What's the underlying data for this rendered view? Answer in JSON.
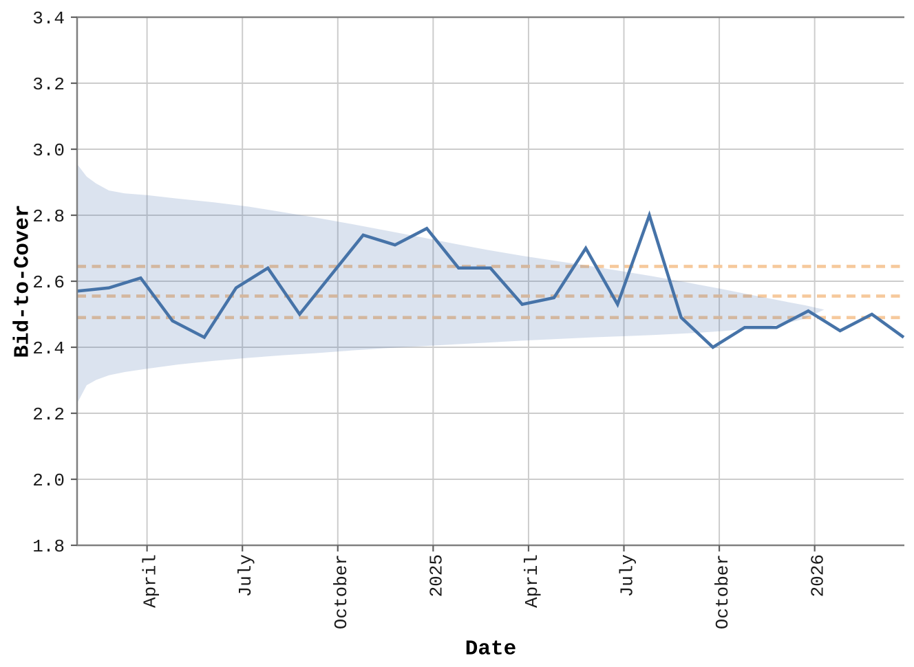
{
  "chart_data": {
    "type": "line",
    "xlabel": "Date",
    "ylabel": "Bid-to-Cover",
    "x": [
      "Feb 2024",
      "Mar 2024",
      "Apr 2024",
      "May 2024",
      "Jun 2024",
      "Jul 2024",
      "Aug 2024",
      "Sep 2024",
      "Oct 2024",
      "Nov 2024",
      "Dec 2024",
      "Jan 2025",
      "Feb 2025",
      "Mar 2025",
      "Apr 2025",
      "May 2025",
      "Jun 2025",
      "Jul 2025",
      "Aug 2025",
      "Sep 2025",
      "Oct 2025",
      "Nov 2025",
      "Dec 2025",
      "Jan 2026",
      "Feb 2026",
      "Mar 2026",
      "Apr 2026"
    ],
    "series": [
      {
        "name": "bid-to-cover",
        "color": "#4673a8",
        "values": [
          2.57,
          2.58,
          2.61,
          2.48,
          2.43,
          2.58,
          2.64,
          2.5,
          2.62,
          2.74,
          2.71,
          2.76,
          2.64,
          2.64,
          2.53,
          2.55,
          2.7,
          2.53,
          2.8,
          2.49,
          2.4,
          2.46,
          2.46,
          2.51,
          2.45,
          2.5,
          2.43
        ]
      }
    ],
    "ylim": [
      1.8,
      3.4
    ],
    "ytick_labels": [
      "1.8",
      "2.0",
      "2.2",
      "2.4",
      "2.6",
      "2.8",
      "3.0",
      "3.2",
      "3.4"
    ],
    "yticks": [
      1.8,
      2.0,
      2.2,
      2.4,
      2.6,
      2.8,
      3.0,
      3.2,
      3.4
    ],
    "xticks": [
      {
        "label": "April",
        "month_offset": 2.2
      },
      {
        "label": "July",
        "month_offset": 5.2
      },
      {
        "label": "October",
        "month_offset": 8.2
      },
      {
        "label": "2025",
        "month_offset": 11.2
      },
      {
        "label": "April",
        "month_offset": 14.2
      },
      {
        "label": "July",
        "month_offset": 17.2
      },
      {
        "label": "October",
        "month_offset": 20.2
      },
      {
        "label": "2026",
        "month_offset": 23.2
      }
    ],
    "reference_lines": {
      "style": "dashed",
      "color": "#f6c99c",
      "values": [
        2.645,
        2.555,
        2.49
      ]
    },
    "band": {
      "name": "uncertainty-band",
      "fill": "#4C72B0",
      "opacity": 0.2,
      "x_month_offsets": [
        0,
        0.3,
        0.6,
        1.0,
        1.5,
        2.2,
        3.2,
        4.3,
        5.4,
        6.5,
        7.5,
        8.6,
        9.7,
        10.8,
        11.9,
        12.9,
        14.0,
        15.1,
        16.2,
        17.3,
        18.1,
        19.2,
        20.3,
        21.4,
        22.3,
        22.9,
        23.5
      ],
      "upper": [
        2.955,
        2.917,
        2.896,
        2.875,
        2.866,
        2.861,
        2.85,
        2.839,
        2.826,
        2.809,
        2.793,
        2.774,
        2.754,
        2.734,
        2.713,
        2.695,
        2.677,
        2.661,
        2.645,
        2.628,
        2.615,
        2.596,
        2.576,
        2.555,
        2.538,
        2.527,
        2.514
      ],
      "lower": [
        2.23,
        2.285,
        2.301,
        2.315,
        2.325,
        2.335,
        2.348,
        2.359,
        2.368,
        2.376,
        2.382,
        2.39,
        2.397,
        2.403,
        2.409,
        2.414,
        2.42,
        2.425,
        2.43,
        2.434,
        2.437,
        2.442,
        2.449,
        2.458,
        2.472,
        2.487,
        2.514
      ]
    },
    "grid": true,
    "legend_position": "none",
    "colors": {
      "line": "#4673a8",
      "band": "#4C72B0",
      "reference": "#f6c99c",
      "grid": "#cccccc",
      "spine": "#7f7f7f",
      "tick": "#606060",
      "text": "#1a1a1a"
    }
  }
}
